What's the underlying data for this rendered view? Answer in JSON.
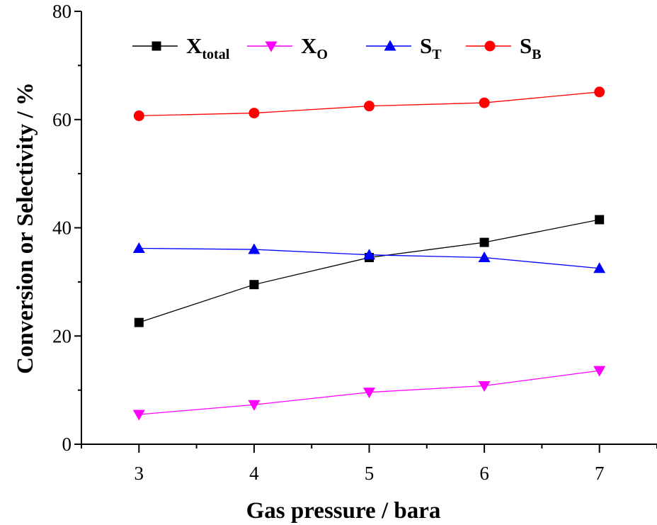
{
  "chart_data": {
    "type": "line",
    "title": "",
    "xlabel": "Gas pressure  / bara",
    "ylabel": "Conversion  or Selectivity / %",
    "xlim": [
      2.5,
      7.5
    ],
    "ylim": [
      0,
      80
    ],
    "x_ticks": [
      3,
      4,
      5,
      6,
      7
    ],
    "y_ticks": [
      0,
      20,
      40,
      60,
      80
    ],
    "grid": false,
    "legend_position": "top",
    "x": [
      3,
      4,
      5,
      6,
      7
    ],
    "series": [
      {
        "name_main": "X",
        "name_sub": "total",
        "color": "#000000",
        "marker": "square",
        "values": [
          22.5,
          29.5,
          34.5,
          37.3,
          41.5
        ]
      },
      {
        "name_main": "X",
        "name_sub": "O",
        "color": "#ff00ff",
        "marker": "triangle-down",
        "values": [
          5.5,
          7.3,
          9.6,
          10.8,
          13.6
        ]
      },
      {
        "name_main": "S",
        "name_sub": "T",
        "color": "#0000ff",
        "marker": "triangle-up",
        "values": [
          36.2,
          36.0,
          35.0,
          34.5,
          32.5
        ]
      },
      {
        "name_main": "S",
        "name_sub": "B",
        "color": "#ff0000",
        "marker": "circle",
        "values": [
          60.7,
          61.2,
          62.5,
          63.1,
          65.1
        ]
      }
    ]
  }
}
